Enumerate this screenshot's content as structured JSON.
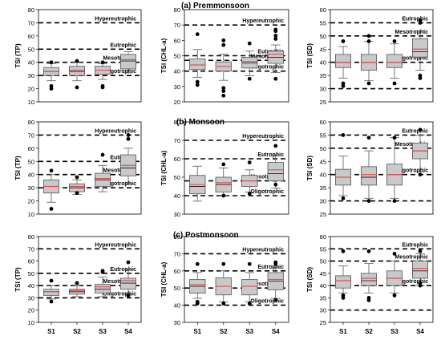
{
  "section_titles": [
    "(a) Premmonsoon",
    "(b) Monsoon",
    "(c) Postmonsoon"
  ],
  "chart_data": [
    {
      "type": "box",
      "section": 0,
      "ylabel": "TSI (TP)",
      "ylim": [
        10,
        80
      ],
      "yticks": [
        10,
        20,
        30,
        40,
        50,
        60,
        70,
        80
      ],
      "categories": [
        "S1",
        "S2",
        "S3",
        "S4"
      ],
      "show_xticks": false,
      "thresholds": [
        {
          "label": "Hypereutrophic",
          "y": 70
        },
        {
          "label": "Eutrophic",
          "y": 50
        },
        {
          "label": "Mesotrophic",
          "y": 40
        },
        {
          "label": "Oligotrophic",
          "y": 30
        }
      ],
      "boxes": [
        {
          "q1": 30,
          "median": 33,
          "mean": 33,
          "q3": 36,
          "wlo": 26,
          "whi": 39,
          "outliers": [
            22,
            20,
            40
          ]
        },
        {
          "q1": 30,
          "median": 33,
          "mean": 34,
          "q3": 37,
          "wlo": 26,
          "whi": 40,
          "outliers": [
            21,
            41
          ]
        },
        {
          "q1": 31,
          "median": 34,
          "mean": 34,
          "q3": 37,
          "wlo": 27,
          "whi": 39,
          "outliers": [
            22,
            21,
            40
          ]
        },
        {
          "q1": 35,
          "median": 41,
          "mean": 42,
          "q3": 46,
          "wlo": 32,
          "whi": 48,
          "outliers": []
        }
      ]
    },
    {
      "type": "box",
      "section": 0,
      "ylabel": "TSI (CHL-a)",
      "ylim": [
        20,
        80
      ],
      "yticks": [
        20,
        30,
        40,
        50,
        60,
        70,
        80
      ],
      "categories": [
        "S1",
        "S2",
        "S3",
        "S4"
      ],
      "show_xticks": false,
      "thresholds": [
        {
          "label": "Hypereutrophic",
          "y": 70
        },
        {
          "label": "Eutrophic",
          "y": 50
        },
        {
          "label": "Mesotrophic",
          "y": 47
        },
        {
          "label": "Oligotrophic",
          "y": 40
        }
      ],
      "boxes": [
        {
          "q1": 41,
          "median": 44,
          "mean": 44,
          "q3": 48,
          "wlo": 36,
          "whi": 54,
          "outliers": [
            64,
            31,
            33
          ]
        },
        {
          "q1": 40,
          "median": 43,
          "mean": 43,
          "q3": 46,
          "wlo": 34,
          "whi": 51,
          "outliers": [
            60,
            57,
            29,
            24,
            27
          ]
        },
        {
          "q1": 42,
          "median": 46,
          "mean": 45,
          "q3": 49,
          "wlo": 37,
          "whi": 53,
          "outliers": [
            58,
            35
          ]
        },
        {
          "q1": 45,
          "median": 49,
          "mean": 51,
          "q3": 53,
          "wlo": 39,
          "whi": 57,
          "outliers": [
            67,
            66,
            63,
            61,
            35
          ]
        }
      ]
    },
    {
      "type": "box",
      "section": 0,
      "ylabel": "TSI (SD)",
      "ylim": [
        25,
        60
      ],
      "yticks": [
        25,
        30,
        35,
        40,
        45,
        50,
        55,
        60
      ],
      "categories": [
        "S1",
        "S2",
        "S3",
        "S4"
      ],
      "show_xticks": false,
      "thresholds": [
        {
          "label": "Eutrophic",
          "y": 55
        },
        {
          "label": "Mesotrophic",
          "y": 50
        },
        {
          "label": "Oligotrophic",
          "y": 40
        },
        {
          "label": "",
          "y": 30
        }
      ],
      "boxes": [
        {
          "q1": 38,
          "median": 40,
          "mean": 40,
          "q3": 43,
          "wlo": 34,
          "whi": 46,
          "outliers": [
            48,
            32,
            31
          ]
        },
        {
          "q1": 37,
          "median": 40,
          "mean": 40,
          "q3": 43,
          "wlo": 33,
          "whi": 48,
          "outliers": [
            50,
            48,
            32
          ]
        },
        {
          "q1": 38,
          "median": 40,
          "mean": 40,
          "q3": 43,
          "wlo": 34,
          "whi": 47,
          "outliers": [
            48,
            32
          ]
        },
        {
          "q1": 42,
          "median": 44,
          "mean": 45,
          "q3": 49,
          "wlo": 37,
          "whi": 52,
          "outliers": [
            56,
            55,
            35,
            34
          ]
        }
      ]
    },
    {
      "type": "box",
      "section": 1,
      "ylabel": "TSI (TP)",
      "ylim": [
        10,
        80
      ],
      "yticks": [
        10,
        20,
        30,
        40,
        50,
        60,
        70,
        80
      ],
      "categories": [
        "S1",
        "S2",
        "S3",
        "S4"
      ],
      "show_xticks": false,
      "thresholds": [
        {
          "label": "Hypereutrophic",
          "y": 70
        },
        {
          "label": "Eutrophic",
          "y": 50
        },
        {
          "label": "Mesotrophic",
          "y": 40
        },
        {
          "label": "Oligotrophic",
          "y": 30
        }
      ],
      "boxes": [
        {
          "q1": 26,
          "median": 31,
          "mean": 31,
          "q3": 36,
          "wlo": 19,
          "whi": 40,
          "outliers": [
            43,
            14
          ]
        },
        {
          "q1": 27,
          "median": 30,
          "mean": 31,
          "q3": 33,
          "wlo": 25,
          "whi": 36,
          "outliers": [
            38,
            26
          ]
        },
        {
          "q1": 31,
          "median": 36,
          "mean": 37,
          "q3": 41,
          "wlo": 27,
          "whi": 47,
          "outliers": [
            55
          ]
        },
        {
          "q1": 39,
          "median": 45,
          "mean": 47,
          "q3": 55,
          "wlo": 33,
          "whi": 60,
          "outliers": [
            70,
            67
          ]
        }
      ]
    },
    {
      "type": "box",
      "section": 1,
      "ylabel": "TSI (CHL-a)",
      "ylim": [
        30,
        80
      ],
      "yticks": [
        30,
        40,
        50,
        60,
        70,
        80
      ],
      "categories": [
        "S1",
        "S2",
        "S3",
        "S4"
      ],
      "show_xticks": false,
      "thresholds": [
        {
          "label": "Hypereutrophic",
          "y": 70
        },
        {
          "label": "Eutrophic",
          "y": 60
        },
        {
          "label": "Mesotrophic",
          "y": 48
        },
        {
          "label": "Oligotrophic",
          "y": 40
        }
      ],
      "boxes": [
        {
          "q1": 41,
          "median": 45,
          "mean": 46,
          "q3": 51,
          "wlo": 37,
          "whi": 56,
          "outliers": []
        },
        {
          "q1": 42,
          "median": 46,
          "mean": 47,
          "q3": 50,
          "wlo": 40,
          "whi": 55,
          "outliers": [
            57,
            40
          ]
        },
        {
          "q1": 45,
          "median": 48,
          "mean": 48,
          "q3": 51,
          "wlo": 42,
          "whi": 54,
          "outliers": [
            58,
            41
          ]
        },
        {
          "q1": 48,
          "median": 52,
          "mean": 54,
          "q3": 58,
          "wlo": 44,
          "whi": 62,
          "outliers": [
            67,
            46
          ]
        }
      ]
    },
    {
      "type": "box",
      "section": 1,
      "ylabel": "TSI (SD)",
      "ylim": [
        25,
        60
      ],
      "yticks": [
        25,
        30,
        35,
        40,
        45,
        50,
        55,
        60
      ],
      "categories": [
        "S1",
        "S2",
        "S3",
        "S4"
      ],
      "show_xticks": false,
      "thresholds": [
        {
          "label": "Eutrophic",
          "y": 55
        },
        {
          "label": "Mesotrophic",
          "y": 50
        },
        {
          "label": "Oligotrophic",
          "y": 40
        },
        {
          "label": "",
          "y": 30
        }
      ],
      "boxes": [
        {
          "q1": 36,
          "median": 39,
          "mean": 39,
          "q3": 42,
          "wlo": 32,
          "whi": 47,
          "outliers": [
            55,
            31
          ]
        },
        {
          "q1": 36,
          "median": 39,
          "mean": 40,
          "q3": 43,
          "wlo": 31,
          "whi": 49,
          "outliers": [
            54,
            30
          ]
        },
        {
          "q1": 36,
          "median": 40,
          "mean": 40,
          "q3": 44,
          "wlo": 31,
          "whi": 54,
          "outliers": [
            54,
            30
          ]
        },
        {
          "q1": 46,
          "median": 49,
          "mean": 49,
          "q3": 52,
          "wlo": 41,
          "whi": 55,
          "outliers": [
            57,
            40
          ]
        }
      ]
    },
    {
      "type": "box",
      "section": 2,
      "ylabel": "TSI (TP)",
      "ylim": [
        10,
        80
      ],
      "yticks": [
        10,
        20,
        30,
        40,
        50,
        60,
        70,
        80
      ],
      "categories": [
        "S1",
        "S2",
        "S3",
        "S4"
      ],
      "show_xticks": true,
      "thresholds": [
        {
          "label": "Hypereutrophic",
          "y": 70
        },
        {
          "label": "Eutrophic",
          "y": 50
        },
        {
          "label": "Mesotrophic",
          "y": 40
        },
        {
          "label": "Oligotrophic",
          "y": 30
        }
      ],
      "boxes": [
        {
          "q1": 32,
          "median": 35,
          "mean": 35,
          "q3": 37,
          "wlo": 29,
          "whi": 40,
          "outliers": [
            44,
            27
          ]
        },
        {
          "q1": 33,
          "median": 35,
          "mean": 36,
          "q3": 37,
          "wlo": 31,
          "whi": 40,
          "outliers": [
            42
          ]
        },
        {
          "q1": 34,
          "median": 37,
          "mean": 39,
          "q3": 41,
          "wlo": 31,
          "whi": 47,
          "outliers": [
            52,
            51
          ]
        },
        {
          "q1": 37,
          "median": 42,
          "mean": 44,
          "q3": 46,
          "wlo": 33,
          "whi": 53,
          "outliers": [
            59,
            32
          ]
        }
      ]
    },
    {
      "type": "box",
      "section": 2,
      "ylabel": "TSI (CHL-a)",
      "ylim": [
        30,
        80
      ],
      "yticks": [
        30,
        40,
        50,
        60,
        70,
        80
      ],
      "categories": [
        "S1",
        "S2",
        "S3",
        "S4"
      ],
      "show_xticks": true,
      "thresholds": [
        {
          "label": "Hypereutrophic",
          "y": 70
        },
        {
          "label": "Eutrophic",
          "y": 60
        },
        {
          "label": "Mesotrophic",
          "y": 50
        },
        {
          "label": "Oligotrophic",
          "y": 40
        }
      ],
      "boxes": [
        {
          "q1": 47,
          "median": 51,
          "mean": 52,
          "q3": 55,
          "wlo": 44,
          "whi": 59,
          "outliers": [
            64,
            42,
            41
          ]
        },
        {
          "q1": 46,
          "median": 51,
          "mean": 51,
          "q3": 56,
          "wlo": 42,
          "whi": 60,
          "outliers": [
            64,
            41
          ]
        },
        {
          "q1": 46,
          "median": 51,
          "mean": 51,
          "q3": 55,
          "wlo": 42,
          "whi": 59,
          "outliers": [
            64,
            41
          ]
        },
        {
          "q1": 49,
          "median": 54,
          "mean": 55,
          "q3": 59,
          "wlo": 44,
          "whi": 62,
          "outliers": [
            65,
            64,
            43
          ]
        }
      ]
    },
    {
      "type": "box",
      "section": 2,
      "ylabel": "TSI (SD)",
      "ylim": [
        25,
        60
      ],
      "yticks": [
        25,
        30,
        35,
        40,
        45,
        50,
        55,
        60
      ],
      "categories": [
        "S1",
        "S2",
        "S3",
        "S4"
      ],
      "show_xticks": true,
      "thresholds": [
        {
          "label": "Eutrophic",
          "y": 55
        },
        {
          "label": "Mesotrophic",
          "y": 50
        },
        {
          "label": "Oligotrophic",
          "y": 40
        },
        {
          "label": "",
          "y": 30
        }
      ],
      "boxes": [
        {
          "q1": 39,
          "median": 42,
          "mean": 42,
          "q3": 44,
          "wlo": 37,
          "whi": 48,
          "outliers": [
            54,
            36,
            35
          ]
        },
        {
          "q1": 40,
          "median": 42,
          "mean": 43,
          "q3": 45,
          "wlo": 37,
          "whi": 49,
          "outliers": [
            54,
            35,
            34
          ]
        },
        {
          "q1": 40,
          "median": 43,
          "mean": 43,
          "q3": 46,
          "wlo": 37,
          "whi": 50,
          "outliers": [
            53,
            36
          ]
        },
        {
          "q1": 43,
          "median": 46,
          "mean": 47,
          "q3": 50,
          "wlo": 40,
          "whi": 53,
          "outliers": [
            54,
            41,
            40
          ]
        }
      ]
    }
  ],
  "colors": {
    "box_fill": "#c9c9c9",
    "box_stroke": "#555555",
    "median": "#222222",
    "mean": "#e05050",
    "outlier": "#000000",
    "threshold": "#000000"
  }
}
